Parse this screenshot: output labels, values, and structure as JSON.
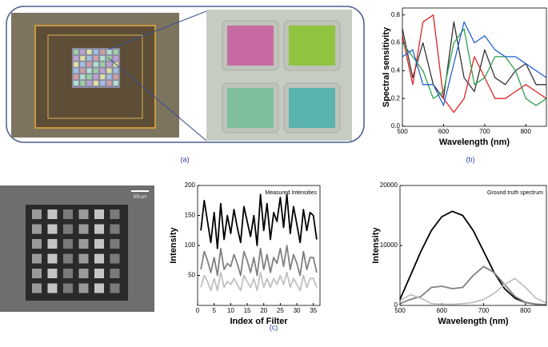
{
  "figure": {
    "panel_labels": [
      "(a)",
      "(b)",
      "(c)"
    ],
    "scale_bar": "500 μm"
  },
  "chart_data": [
    {
      "type": "line",
      "xlabel": "Wavelength (nm)",
      "ylabel": "Spectral sensitivity",
      "x": [
        500,
        525,
        550,
        575,
        600,
        625,
        650,
        675,
        700,
        725,
        750,
        775,
        800,
        825,
        850
      ],
      "xlim": [
        500,
        850
      ],
      "xticks": [
        500,
        600,
        700,
        800
      ],
      "ylim": [
        0,
        0.85
      ],
      "yticks": [
        {
          "value": 0,
          "label": "0.0"
        },
        0.2,
        0.4,
        0.6,
        0.8
      ],
      "series": [
        {
          "color": "#333333",
          "values": [
            0.7,
            0.35,
            0.6,
            0.3,
            0.2,
            0.75,
            0.35,
            0.25,
            0.55,
            0.35,
            0.3,
            0.4,
            0.45,
            0.3,
            0.3
          ]
        },
        {
          "color": "#e02424",
          "values": [
            0.65,
            0.3,
            0.75,
            0.8,
            0.2,
            0.1,
            0.2,
            0.5,
            0.35,
            0.2,
            0.2,
            0.25,
            0.3,
            0.25,
            0.2
          ]
        },
        {
          "color": "#2ca24c",
          "values": [
            0.6,
            0.5,
            0.4,
            0.2,
            0.25,
            0.6,
            0.7,
            0.3,
            0.35,
            0.5,
            0.5,
            0.4,
            0.2,
            0.15,
            0.2
          ]
        },
        {
          "color": "#2462d2",
          "values": [
            0.5,
            0.55,
            0.3,
            0.3,
            0.15,
            0.45,
            0.75,
            0.6,
            0.65,
            0.55,
            0.5,
            0.5,
            0.45,
            0.4,
            0.35
          ]
        }
      ]
    },
    {
      "type": "line",
      "xlabel": "Index of Filter",
      "ylabel": "Intensity",
      "annotation": "Measured Intensities",
      "x": [
        1,
        2,
        3,
        4,
        5,
        6,
        7,
        8,
        9,
        10,
        11,
        12,
        13,
        14,
        15,
        16,
        17,
        18,
        19,
        20,
        21,
        22,
        23,
        24,
        25,
        26,
        27,
        28,
        29,
        30,
        31,
        32,
        33,
        34,
        35,
        36
      ],
      "xlim": [
        0,
        37
      ],
      "xticks": [
        0,
        5,
        10,
        15,
        20,
        25,
        30,
        35
      ],
      "ylim": [
        0,
        200
      ],
      "yticks": [
        50,
        100,
        150,
        200
      ],
      "series": [
        {
          "color": "#000000",
          "values": [
            125,
            175,
            140,
            105,
            155,
            95,
            170,
            110,
            150,
            120,
            160,
            130,
            105,
            165,
            140,
            115,
            150,
            100,
            185,
            125,
            170,
            110,
            155,
            140,
            180,
            130,
            185,
            120,
            165,
            135,
            105,
            160,
            125,
            155,
            150,
            110
          ]
        },
        {
          "color": "#808080",
          "values": [
            60,
            90,
            75,
            55,
            80,
            50,
            95,
            60,
            70,
            65,
            85,
            70,
            50,
            90,
            75,
            55,
            80,
            50,
            95,
            60,
            85,
            55,
            80,
            70,
            95,
            65,
            100,
            60,
            85,
            70,
            50,
            90,
            60,
            80,
            80,
            55
          ]
        },
        {
          "color": "#c0c0c0",
          "values": [
            30,
            50,
            40,
            25,
            45,
            25,
            55,
            30,
            40,
            35,
            45,
            35,
            25,
            50,
            40,
            30,
            45,
            25,
            55,
            30,
            45,
            30,
            45,
            35,
            50,
            35,
            55,
            30,
            45,
            35,
            25,
            50,
            30,
            45,
            45,
            30
          ]
        }
      ]
    },
    {
      "type": "line",
      "xlabel": "Wavelength (nm)",
      "ylabel": "Intensity",
      "annotation": "Ground truth spectrum",
      "x": [
        500,
        525,
        550,
        575,
        600,
        625,
        650,
        675,
        700,
        725,
        750,
        775,
        800,
        825,
        850
      ],
      "xlim": [
        500,
        850
      ],
      "xticks": [
        500,
        600,
        700,
        800
      ],
      "ylim": [
        0,
        20000
      ],
      "yticks": [
        0,
        10000,
        20000
      ],
      "series": [
        {
          "color": "#000000",
          "values": [
            1000,
            5000,
            9000,
            12500,
            14800,
            15700,
            15000,
            12500,
            9000,
            5500,
            2800,
            1200,
            500,
            200,
            100
          ]
        },
        {
          "color": "#808080",
          "values": [
            300,
            1000,
            1500,
            3000,
            3200,
            2800,
            3000,
            5000,
            6500,
            5500,
            3500,
            1500,
            500,
            200,
            100
          ]
        },
        {
          "color": "#c0c0c0",
          "values": [
            800,
            1800,
            1200,
            300,
            200,
            200,
            300,
            500,
            1000,
            2000,
            3500,
            4500,
            3000,
            1200,
            400
          ]
        }
      ]
    }
  ]
}
